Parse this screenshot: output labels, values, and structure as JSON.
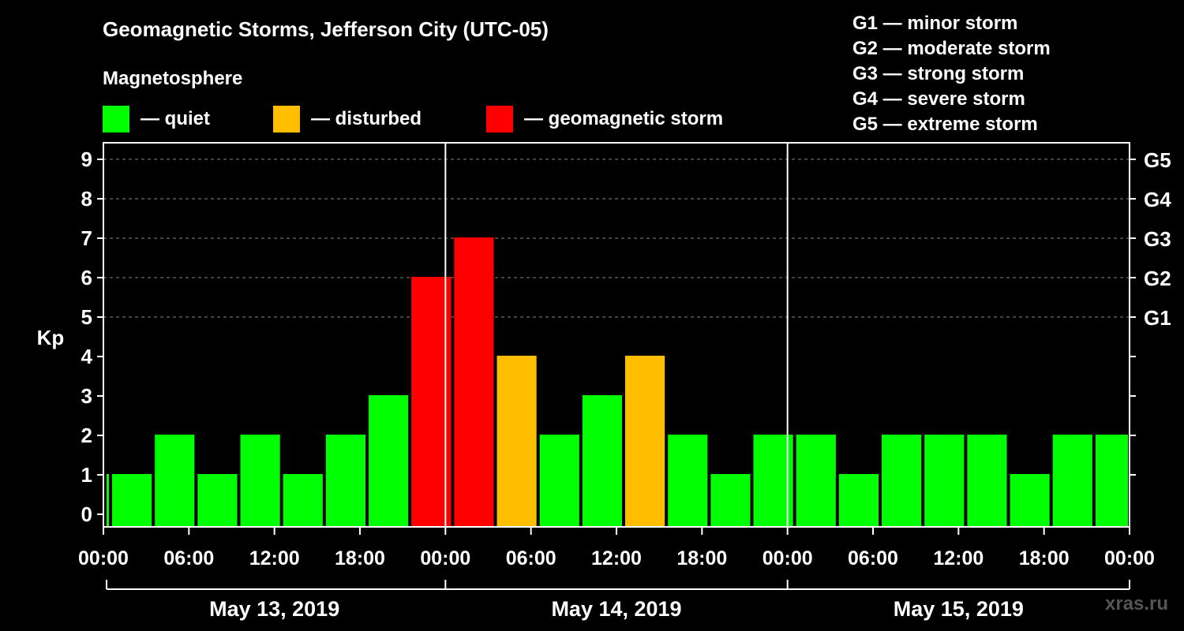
{
  "header": {
    "title": "Geomagnetic Storms, Jefferson City (UTC-05)",
    "subtitle": "Magnetosphere"
  },
  "legend": [
    {
      "label": "— quiet",
      "color": "#00ff00"
    },
    {
      "label": "— disturbed",
      "color": "#ffbf00"
    },
    {
      "label": "— geomagnetic storm",
      "color": "#ff0000"
    }
  ],
  "storm_scale": [
    "G1 — minor storm",
    "G2 — moderate storm",
    "G3 — strong storm",
    "G4 — severe storm",
    "G5 — extreme storm"
  ],
  "watermark": "xras.ru",
  "chart_data": {
    "type": "bar",
    "ylabel": "Kp",
    "ylim": [
      0,
      9
    ],
    "yticks": [
      0,
      1,
      2,
      3,
      4,
      5,
      6,
      7,
      8,
      9
    ],
    "right_ticks": [
      {
        "value": 5,
        "label": "G1"
      },
      {
        "value": 6,
        "label": "G2"
      },
      {
        "value": 7,
        "label": "G3"
      },
      {
        "value": 8,
        "label": "G4"
      },
      {
        "value": 9,
        "label": "G5"
      }
    ],
    "xtick_labels": [
      "00:00",
      "06:00",
      "12:00",
      "18:00",
      "00:00",
      "06:00",
      "12:00",
      "18:00",
      "00:00",
      "06:00",
      "12:00",
      "18:00",
      "00:00"
    ],
    "dates": [
      "May 13, 2019",
      "May 14, 2019",
      "May 15, 2019"
    ],
    "grid": "dashed horizontal",
    "colors": {
      "quiet": "#00ff00",
      "disturbed": "#ffbf00",
      "storm": "#ff0000"
    },
    "bars": [
      {
        "start_hour": 0,
        "end_hour": 0.5,
        "kp": 1
      },
      {
        "start_hour": 0.5,
        "end_hour": 3.5,
        "kp": 1
      },
      {
        "start_hour": 3.5,
        "end_hour": 6.5,
        "kp": 2
      },
      {
        "start_hour": 6.5,
        "end_hour": 9.5,
        "kp": 1
      },
      {
        "start_hour": 9.5,
        "end_hour": 12.5,
        "kp": 2
      },
      {
        "start_hour": 12.5,
        "end_hour": 15.5,
        "kp": 1
      },
      {
        "start_hour": 15.5,
        "end_hour": 18.5,
        "kp": 2
      },
      {
        "start_hour": 18.5,
        "end_hour": 21.5,
        "kp": 3
      },
      {
        "start_hour": 21.5,
        "end_hour": 24.5,
        "kp": 6
      },
      {
        "start_hour": 24.5,
        "end_hour": 27.5,
        "kp": 7
      },
      {
        "start_hour": 27.5,
        "end_hour": 30.5,
        "kp": 4
      },
      {
        "start_hour": 30.5,
        "end_hour": 33.5,
        "kp": 2
      },
      {
        "start_hour": 33.5,
        "end_hour": 36.5,
        "kp": 3
      },
      {
        "start_hour": 36.5,
        "end_hour": 39.5,
        "kp": 4
      },
      {
        "start_hour": 39.5,
        "end_hour": 42.5,
        "kp": 2
      },
      {
        "start_hour": 42.5,
        "end_hour": 45.5,
        "kp": 1
      },
      {
        "start_hour": 45.5,
        "end_hour": 48.5,
        "kp": 2
      },
      {
        "start_hour": 48.5,
        "end_hour": 51.5,
        "kp": 2
      },
      {
        "start_hour": 51.5,
        "end_hour": 54.5,
        "kp": 1
      },
      {
        "start_hour": 54.5,
        "end_hour": 57.5,
        "kp": 2
      },
      {
        "start_hour": 57.5,
        "end_hour": 60.5,
        "kp": 2
      },
      {
        "start_hour": 60.5,
        "end_hour": 63.5,
        "kp": 2
      },
      {
        "start_hour": 63.5,
        "end_hour": 66.5,
        "kp": 1
      },
      {
        "start_hour": 66.5,
        "end_hour": 69.5,
        "kp": 2
      },
      {
        "start_hour": 69.5,
        "end_hour": 72,
        "kp": 2
      }
    ]
  }
}
